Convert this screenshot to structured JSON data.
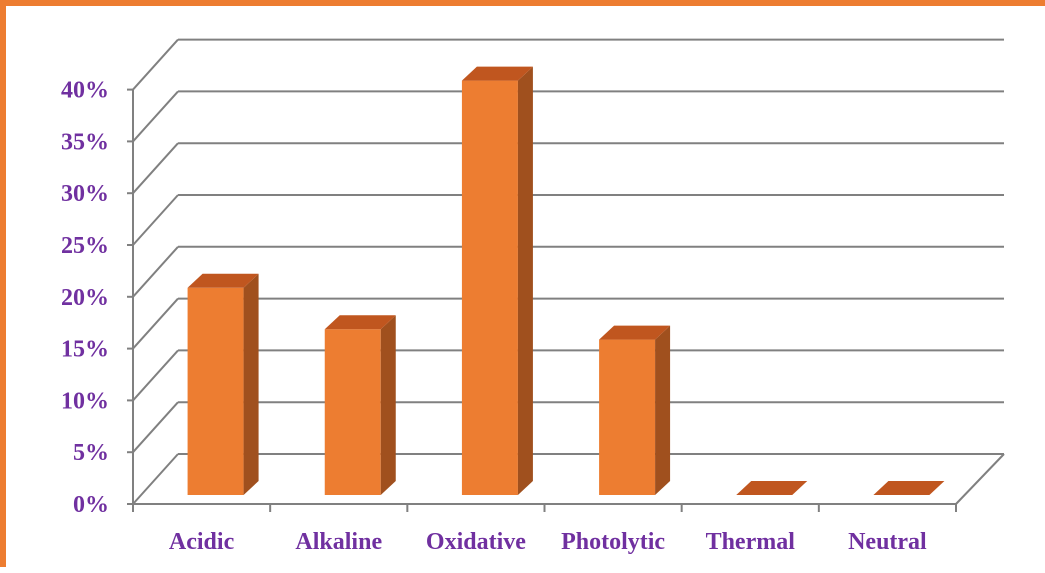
{
  "chart_data": {
    "type": "bar",
    "style": "3d-column",
    "categories": [
      "Acidic",
      "Alkaline",
      "Oxidative",
      "Photolytic",
      "Thermal",
      "Neutral"
    ],
    "values": [
      20,
      16,
      40,
      15,
      0,
      0
    ],
    "ylim": [
      0,
      40
    ],
    "ytick_values": [
      0,
      5,
      10,
      15,
      20,
      25,
      30,
      35,
      40
    ],
    "ytick_labels": [
      "0%",
      "5%",
      "10%",
      "15%",
      "20%",
      "25%",
      "30%",
      "35%",
      "40%"
    ],
    "grid": true,
    "legend": "none",
    "colors": {
      "bar_front": "#ED7D31",
      "bar_side": "#A0501E",
      "bar_top": "#C0561F",
      "gridline": "#808080",
      "label_text": "#7030A0",
      "frame_border": "#ED7D31"
    }
  }
}
